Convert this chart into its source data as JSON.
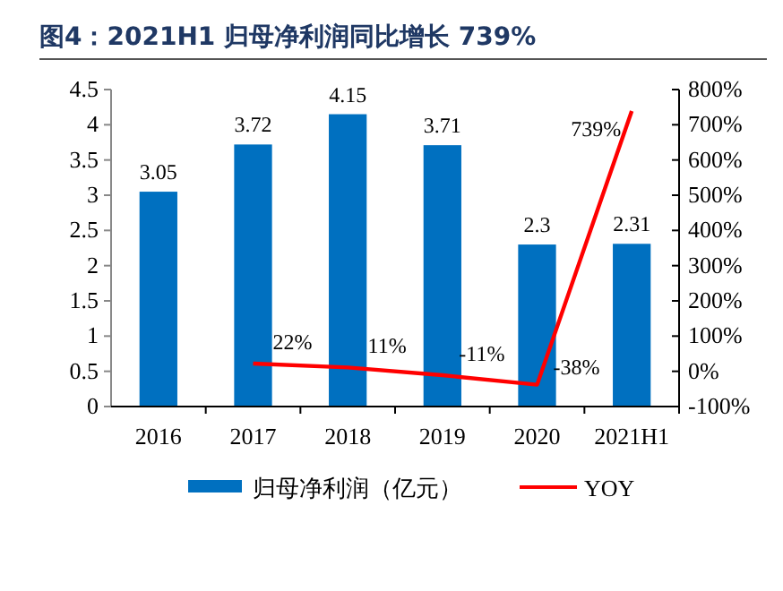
{
  "chart_data": {
    "type": "bar",
    "title": "图4：2021H1 归母净利润同比增长 739%",
    "categories": [
      "2016",
      "2017",
      "2018",
      "2019",
      "2020",
      "2021H1"
    ],
    "series": [
      {
        "name": "归母净利润（亿元）",
        "color": "#0070c0",
        "values": [
          3.05,
          3.72,
          4.15,
          3.71,
          2.3,
          2.31
        ]
      },
      {
        "name": "YOY",
        "type": "line",
        "axis": "y2",
        "color": "#ff0000",
        "values": [
          null,
          22,
          11,
          -11,
          -38,
          739
        ],
        "value_labels": [
          null,
          "22%",
          "11%",
          "-11%",
          "-38%",
          "739%"
        ]
      }
    ],
    "ylim": [
      0,
      4.5
    ],
    "yticks": [
      0,
      0.5,
      1,
      1.5,
      2,
      2.5,
      3,
      3.5,
      4,
      4.5
    ],
    "y2lim": [
      -100,
      800
    ],
    "y2ticks": [
      {
        "value": -100,
        "label": "-100%"
      },
      {
        "value": 0,
        "label": "0%"
      },
      {
        "value": 100,
        "label": "100%"
      },
      {
        "value": 200,
        "label": "200%"
      },
      {
        "value": 300,
        "label": "300%"
      },
      {
        "value": 400,
        "label": "400%"
      },
      {
        "value": 500,
        "label": "500%"
      },
      {
        "value": 600,
        "label": "600%"
      },
      {
        "value": 700,
        "label": "700%"
      },
      {
        "value": 800,
        "label": "800%"
      }
    ],
    "data_labels": true,
    "legend": "bottom"
  }
}
